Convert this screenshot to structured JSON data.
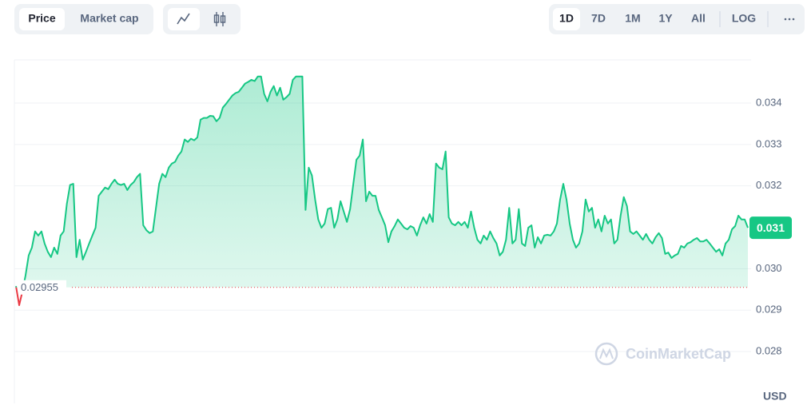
{
  "toolbar": {
    "metric_tabs": [
      "Price",
      "Market cap"
    ],
    "range_tabs": [
      "1D",
      "7D",
      "1M",
      "1Y",
      "All"
    ],
    "log_toggle": "LOG"
  },
  "chart_data": {
    "type": "line",
    "color": "#16c784",
    "below_color": "#ea3943",
    "grid": true,
    "values": [
      0.02958,
      0.02912,
      0.02945,
      0.02983,
      0.03032,
      0.03051,
      0.0309,
      0.0308,
      0.0309,
      0.03061,
      0.03041,
      0.03028,
      0.03051,
      0.03036,
      0.0308,
      0.0309,
      0.03157,
      0.03202,
      0.03205,
      0.03028,
      0.0307,
      0.03022,
      0.03041,
      0.03061,
      0.0308,
      0.03099,
      0.03176,
      0.03186,
      0.03196,
      0.03192,
      0.03205,
      0.03215,
      0.03205,
      0.03202,
      0.03205,
      0.0319,
      0.03202,
      0.03209,
      0.03221,
      0.03229,
      0.03105,
      0.03093,
      0.03086,
      0.0309,
      0.03147,
      0.03205,
      0.03229,
      0.03221,
      0.03244,
      0.03254,
      0.03258,
      0.03273,
      0.03283,
      0.03312,
      0.03306,
      0.03314,
      0.0331,
      0.03317,
      0.0336,
      0.03364,
      0.03364,
      0.03369,
      0.03368,
      0.03356,
      0.03364,
      0.03389,
      0.03398,
      0.03408,
      0.03418,
      0.03424,
      0.03427,
      0.03437,
      0.03447,
      0.03451,
      0.03456,
      0.03453,
      0.03464,
      0.03464,
      0.03422,
      0.03404,
      0.03427,
      0.03441,
      0.03418,
      0.03437,
      0.03408,
      0.03414,
      0.03422,
      0.03456,
      0.03464,
      0.03464,
      0.03464,
      0.03142,
      0.03244,
      0.03225,
      0.03167,
      0.03119,
      0.03099,
      0.03109,
      0.03144,
      0.03147,
      0.03099,
      0.03119,
      0.03163,
      0.03138,
      0.03113,
      0.03144,
      0.03205,
      0.03263,
      0.03273,
      0.03312,
      0.03163,
      0.03186,
      0.03176,
      0.03176,
      0.03142,
      0.03124,
      0.03105,
      0.03064,
      0.0309,
      0.03103,
      0.03119,
      0.03109,
      0.03099,
      0.03095,
      0.03103,
      0.03099,
      0.0308,
      0.03105,
      0.03124,
      0.03109,
      0.03132,
      0.03113,
      0.03254,
      0.03244,
      0.0324,
      0.03283,
      0.03124,
      0.03109,
      0.03105,
      0.03113,
      0.03105,
      0.03113,
      0.03099,
      0.03138,
      0.03099,
      0.0307,
      0.03061,
      0.0308,
      0.0307,
      0.0309,
      0.03074,
      0.03061,
      0.03032,
      0.03041,
      0.0307,
      0.03147,
      0.03061,
      0.0307,
      0.03144,
      0.03061,
      0.03055,
      0.03099,
      0.03105,
      0.03051,
      0.03076,
      0.03061,
      0.0308,
      0.03082,
      0.0308,
      0.0309,
      0.03109,
      0.03167,
      0.03205,
      0.03167,
      0.03109,
      0.0307,
      0.03051,
      0.03061,
      0.0309,
      0.03167,
      0.03138,
      0.03147,
      0.03099,
      0.03119,
      0.0309,
      0.03128,
      0.03109,
      0.03119,
      0.03061,
      0.0307,
      0.03128,
      0.03173,
      0.03151,
      0.0309,
      0.03084,
      0.0309,
      0.0308,
      0.0307,
      0.03084,
      0.0307,
      0.03061,
      0.03076,
      0.03086,
      0.03074,
      0.03036,
      0.03039,
      0.03026,
      0.03032,
      0.03036,
      0.03055,
      0.03051,
      0.03061,
      0.03064,
      0.0307,
      0.03074,
      0.03066,
      0.03066,
      0.0307,
      0.03061,
      0.03051,
      0.03041,
      0.03047,
      0.03032,
      0.03061,
      0.0307,
      0.03095,
      0.03103,
      0.03128,
      0.03119,
      0.03119,
      0.03099
    ],
    "baseline": 0.02955,
    "current_price_label": "0.031",
    "ylim": [
      0.02675,
      0.03504
    ],
    "yticks": [
      0.028,
      0.029,
      {
        "value": 0.03,
        "label": "0.030"
      },
      0.032,
      0.033,
      0.034
    ],
    "y_unit": "USD",
    "watermark": "CoinMarketCap"
  }
}
